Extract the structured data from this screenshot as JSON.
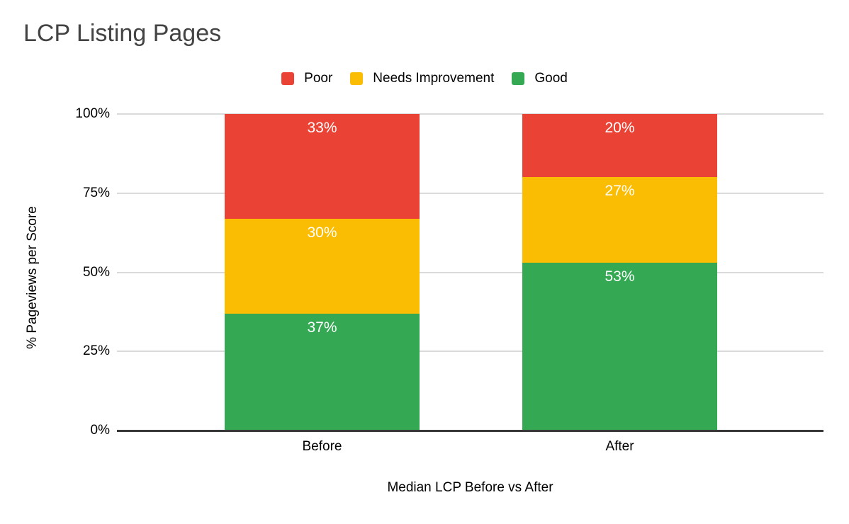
{
  "title": "LCP Listing Pages",
  "legend": {
    "items": [
      {
        "label": "Poor",
        "color": "#EA4335"
      },
      {
        "label": "Needs Improvement",
        "color": "#FBBC04"
      },
      {
        "label": "Good",
        "color": "#34A853"
      }
    ]
  },
  "axes": {
    "y_title": "% Pageviews per Score",
    "x_title": "Median LCP Before vs After",
    "y_ticks": [
      "100%",
      "75%",
      "50%",
      "25%",
      "0%"
    ]
  },
  "chart_data": {
    "type": "bar",
    "stacked": true,
    "title": "LCP Listing Pages",
    "xlabel": "Median LCP Before vs After",
    "ylabel": "% Pageviews per Score",
    "categories": [
      "Before",
      "After"
    ],
    "series": [
      {
        "name": "Good",
        "color": "#34A853",
        "values": [
          37,
          53
        ]
      },
      {
        "name": "Needs Improvement",
        "color": "#FBBC04",
        "values": [
          30,
          27
        ]
      },
      {
        "name": "Poor",
        "color": "#EA4335",
        "values": [
          33,
          20
        ]
      }
    ],
    "value_label_suffix": "%",
    "ylim": [
      0,
      100
    ],
    "grid": true,
    "legend_position": "top"
  },
  "colors": {
    "grid": "#dadada",
    "axis_line": "#383838",
    "title_text": "#434343",
    "tick_text": "#000000",
    "bar_label_text": "#ffffff",
    "background": "#ffffff"
  }
}
